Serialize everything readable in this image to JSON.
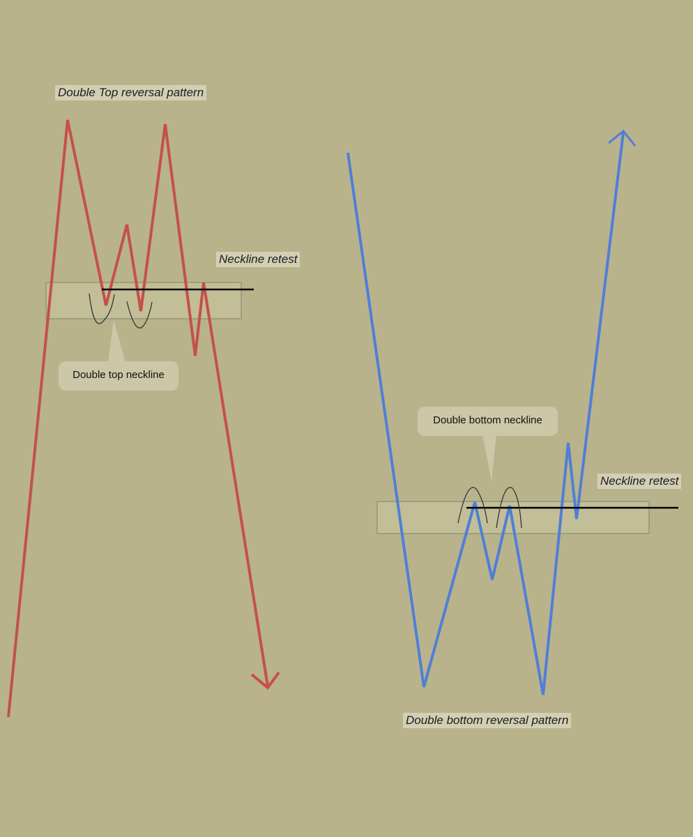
{
  "labels": {
    "double_top_title": "Double Top reversal pattern",
    "double_top_retest": "Neckline retest",
    "double_top_neckline": "Double top neckline",
    "double_bottom_neckline": "Double bottom neckline",
    "double_bottom_retest": "Neckline retest",
    "double_bottom_title": "Double bottom reversal pattern"
  },
  "colors": {
    "background": "#b8b38b",
    "bearish_line": "#c5504a",
    "bullish_line": "#4f7fd6",
    "neckline": "#000000",
    "zone_fill": "#c8c4a0",
    "label_bg": "#d3cfb4"
  }
}
